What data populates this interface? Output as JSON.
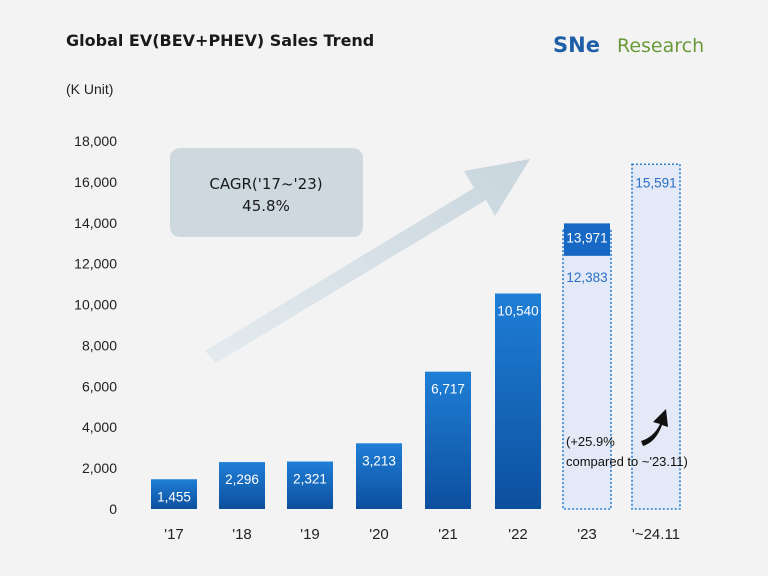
{
  "chart_data": {
    "type": "bar",
    "title": "Global EV(BEV+PHEV)  Sales Trend",
    "unit_label": "(K Unit)",
    "ylim": [
      0,
      18000
    ],
    "yticks": [
      "0",
      "2,000",
      "4,000",
      "6,000",
      "8,000",
      "10,000",
      "12,000",
      "14,000",
      "16,000",
      "18,000"
    ],
    "categories": [
      "'17",
      "'18",
      "'19",
      "'20",
      "'21",
      "'22",
      "'23",
      "'~24.11"
    ],
    "values": [
      1455,
      2296,
      2321,
      3213,
      6717,
      10540,
      13971,
      null
    ],
    "value_labels": [
      "1,455",
      "2,296",
      "2,321",
      "3,213",
      "6,717",
      "10,540",
      "13,971",
      ""
    ],
    "projection": {
      "values": [
        null,
        null,
        null,
        null,
        null,
        null,
        12383,
        15591
      ],
      "labels": [
        "",
        "",
        "",
        "",
        "",
        "",
        "12,383",
        "15,591"
      ]
    },
    "annotations": {
      "cagr_line1": "CAGR('17~'23)",
      "cagr_line2": "45.8%",
      "growth_line1": "(+25.9%",
      "growth_line2": "compared to ~'23.11)"
    },
    "colors": {
      "bar_top": "#1f7fd6",
      "bar_bottom": "#0d4f9e",
      "ghost_fill": "#e3e9f6",
      "ghost_border": "#2c7fd0",
      "cagr_box": "#cdd8df",
      "trend_arrow": "#c9d6de"
    }
  },
  "logo": {
    "sne": "SNe",
    "research": "Research"
  }
}
